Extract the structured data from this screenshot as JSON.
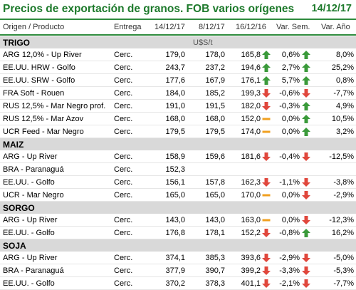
{
  "title": "Precios de exportación de granos. FOB varios orígenes",
  "date": "14/12/17",
  "columns": {
    "origin": "Origen / Producto",
    "delivery": "Entrega",
    "d1": "14/12/17",
    "d2": "8/12/17",
    "d3": "16/12/16",
    "weekly": "Var. Sem.",
    "yearly": "Var. Año"
  },
  "colors": {
    "green": "#1e7a2c",
    "up": "#3a9a3a",
    "down": "#e0473c",
    "flat": "#f0a020",
    "section_bg": "#d9d9d9"
  },
  "sections": [
    {
      "name": "TRIGO",
      "unit": "U$S/t",
      "rows": [
        {
          "product": "ARG 12,0% - Up River",
          "delivery": "Cerc.",
          "v1": "179,0",
          "v2": "178,0",
          "v3": "165,8",
          "a1": "up",
          "ws": "0,6%",
          "a2": "up",
          "ya": "8,0%"
        },
        {
          "product": "EE.UU. HRW - Golfo",
          "delivery": "Cerc.",
          "v1": "243,7",
          "v2": "237,2",
          "v3": "194,6",
          "a1": "up",
          "ws": "2,7%",
          "a2": "up",
          "ya": "25,2%"
        },
        {
          "product": "EE.UU. SRW - Golfo",
          "delivery": "Cerc.",
          "v1": "177,6",
          "v2": "167,9",
          "v3": "176,1",
          "a1": "up",
          "ws": "5,7%",
          "a2": "up",
          "ya": "0,8%"
        },
        {
          "product": "FRA Soft - Rouen",
          "delivery": "Cerc.",
          "v1": "184,0",
          "v2": "185,2",
          "v3": "199,3",
          "a1": "down",
          "ws": "-0,6%",
          "a2": "down",
          "ya": "-7,7%"
        },
        {
          "product": "RUS 12,5% - Mar Negro prof.",
          "delivery": "Cerc.",
          "v1": "191,0",
          "v2": "191,5",
          "v3": "182,0",
          "a1": "down",
          "ws": "-0,3%",
          "a2": "up",
          "ya": "4,9%"
        },
        {
          "product": "RUS 12,5% - Mar Azov",
          "delivery": "Cerc.",
          "v1": "168,0",
          "v2": "168,0",
          "v3": "152,0",
          "a1": "flat",
          "ws": "0,0%",
          "a2": "up",
          "ya": "10,5%"
        },
        {
          "product": "UCR Feed - Mar Negro",
          "delivery": "Cerc.",
          "v1": "179,5",
          "v2": "179,5",
          "v3": "174,0",
          "a1": "flat",
          "ws": "0,0%",
          "a2": "up",
          "ya": "3,2%"
        }
      ]
    },
    {
      "name": "MAIZ",
      "unit": "",
      "rows": [
        {
          "product": "ARG - Up River",
          "delivery": "Cerc.",
          "v1": "158,9",
          "v2": "159,6",
          "v3": "181,6",
          "a1": "down",
          "ws": "-0,4%",
          "a2": "down",
          "ya": "-12,5%"
        },
        {
          "product": "BRA - Paranaguá",
          "delivery": "Cerc.",
          "v1": "152,3",
          "v2": "",
          "v3": "",
          "a1": "",
          "ws": "",
          "a2": "",
          "ya": ""
        },
        {
          "product": "EE.UU. - Golfo",
          "delivery": "Cerc.",
          "v1": "156,1",
          "v2": "157,8",
          "v3": "162,3",
          "a1": "down",
          "ws": "-1,1%",
          "a2": "down",
          "ya": "-3,8%"
        },
        {
          "product": "UCR - Mar Negro",
          "delivery": "Cerc.",
          "v1": "165,0",
          "v2": "165,0",
          "v3": "170,0",
          "a1": "flat",
          "ws": "0,0%",
          "a2": "down",
          "ya": "-2,9%"
        }
      ]
    },
    {
      "name": "SORGO",
      "unit": "",
      "rows": [
        {
          "product": "ARG - Up River",
          "delivery": "Cerc.",
          "v1": "143,0",
          "v2": "143,0",
          "v3": "163,0",
          "a1": "flat",
          "ws": "0,0%",
          "a2": "down",
          "ya": "-12,3%"
        },
        {
          "product": "EE.UU. - Golfo",
          "delivery": "Cerc.",
          "v1": "176,8",
          "v2": "178,1",
          "v3": "152,2",
          "a1": "down",
          "ws": "-0,8%",
          "a2": "up",
          "ya": "16,2%"
        }
      ]
    },
    {
      "name": "SOJA",
      "unit": "",
      "rows": [
        {
          "product": "ARG - Up River",
          "delivery": "Cerc.",
          "v1": "374,1",
          "v2": "385,3",
          "v3": "393,6",
          "a1": "down",
          "ws": "-2,9%",
          "a2": "down",
          "ya": "-5,0%"
        },
        {
          "product": "BRA - Paranaguá",
          "delivery": "Cerc.",
          "v1": "377,9",
          "v2": "390,7",
          "v3": "399,2",
          "a1": "down",
          "ws": "-3,3%",
          "a2": "down",
          "ya": "-5,3%"
        },
        {
          "product": "EE.UU. - Golfo",
          "delivery": "Cerc.",
          "v1": "370,2",
          "v2": "378,3",
          "v3": "401,1",
          "a1": "down",
          "ws": "-2,1%",
          "a2": "down",
          "ya": "-7,7%"
        }
      ]
    }
  ]
}
